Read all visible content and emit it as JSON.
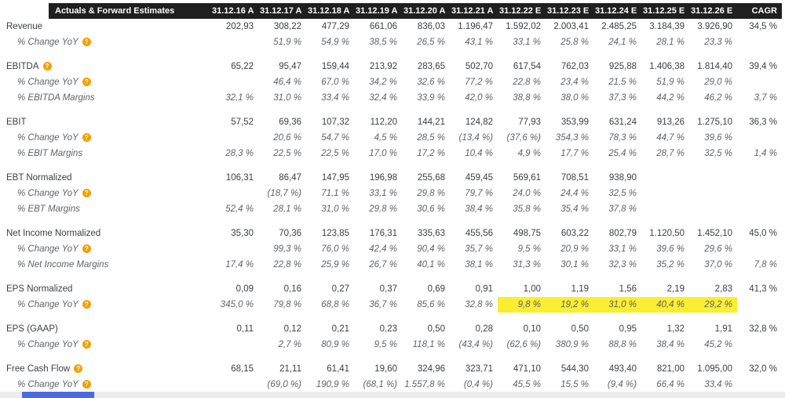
{
  "colors": {
    "header_bg": "#1f1f1f",
    "accent_orange": "#f59f00",
    "negative_red": "#e2403a",
    "highlight_yellow": "#f9ee31",
    "scrollbar_thumb": "#4a6be0"
  },
  "icons": {
    "info": "?"
  },
  "table": {
    "title": "Actuals & Forward Estimates",
    "columns": [
      "31.12.16 A",
      "31.12.17 A",
      "31.12.18 A",
      "31.12.19 A",
      "31.12.20 A",
      "31.12.21 A",
      "31.12.22 E",
      "31.12.23 E",
      "31.12.24 E",
      "31.12.25 E",
      "31.12.26 E",
      "CAGR"
    ],
    "groups": [
      {
        "rows": [
          {
            "label": "Revenue",
            "style": "main",
            "info": false,
            "cells": [
              "202,93",
              "308,22",
              "477,29",
              "661,06",
              "836,03",
              "1.196,47",
              "1.592,02",
              "2.003,41",
              "2.485,25",
              "3.184,39",
              "3.926,90",
              "34,5 %"
            ]
          },
          {
            "label": "% Change YoY",
            "style": "sub",
            "info": true,
            "cells": [
              "",
              "51,9 %",
              "54,9 %",
              "38,5 %",
              "26,5 %",
              "43,1 %",
              "33,1 %",
              "25,8 %",
              "24,1 %",
              "28,1 %",
              "23,3 %",
              ""
            ]
          }
        ]
      },
      {
        "rows": [
          {
            "label": "EBITDA",
            "style": "main",
            "info": true,
            "cells": [
              "65,22",
              "95,47",
              "159,44",
              "213,92",
              "283,65",
              "502,70",
              "617,54",
              "762,03",
              "925,88",
              "1.406,38",
              "1.814,40",
              "39,4 %"
            ]
          },
          {
            "label": "% Change YoY",
            "style": "sub",
            "info": true,
            "cells": [
              "",
              "46,4 %",
              "67,0 %",
              "34,2 %",
              "32,6 %",
              "77,2 %",
              "22,8 %",
              "23,4 %",
              "21,5 %",
              "51,9 %",
              "29,0 %",
              ""
            ]
          },
          {
            "label": "% EBITDA Margins",
            "style": "sub",
            "info": false,
            "cells": [
              "32,1 %",
              "31,0 %",
              "33,4 %",
              "32,4 %",
              "33,9 %",
              "42,0 %",
              "38,8 %",
              "38,0 %",
              "37,3 %",
              "44,2 %",
              "46,2 %",
              "3,7 %"
            ]
          }
        ]
      },
      {
        "rows": [
          {
            "label": "EBIT",
            "style": "main",
            "info": false,
            "cells": [
              "57,52",
              "69,36",
              "107,32",
              "112,20",
              "144,21",
              "124,82",
              "77,93",
              "353,99",
              "631,24",
              "913,26",
              "1.275,10",
              "36,3 %"
            ]
          },
          {
            "label": "% Change YoY",
            "style": "sub",
            "info": true,
            "cells": [
              "",
              "20,6 %",
              "54,7 %",
              "4,5 %",
              "28,5 %",
              "(13,4 %)",
              "(37,6 %)",
              "354,3 %",
              "78,3 %",
              "44,7 %",
              "39,6 %",
              ""
            ]
          },
          {
            "label": "% EBIT Margins",
            "style": "sub",
            "info": false,
            "cells": [
              "28,3 %",
              "22,5 %",
              "22,5 %",
              "17,0 %",
              "17,2 %",
              "10,4 %",
              "4,9 %",
              "17,7 %",
              "25,4 %",
              "28,7 %",
              "32,5 %",
              "1,4 %"
            ]
          }
        ]
      },
      {
        "rows": [
          {
            "label": "EBT Normalized",
            "style": "main",
            "info": false,
            "cells": [
              "106,31",
              "86,47",
              "147,95",
              "196,98",
              "255,68",
              "459,45",
              "569,61",
              "708,51",
              "938,90",
              "",
              "",
              ""
            ]
          },
          {
            "label": "% Change YoY",
            "style": "sub",
            "info": true,
            "cells": [
              "",
              "(18,7 %)",
              "71,1 %",
              "33,1 %",
              "29,8 %",
              "79,7 %",
              "24,0 %",
              "24,4 %",
              "32,5 %",
              "",
              "",
              ""
            ]
          },
          {
            "label": "% EBT Margins",
            "style": "sub",
            "info": false,
            "cells": [
              "52,4 %",
              "28,1 %",
              "31,0 %",
              "29,8 %",
              "30,6 %",
              "38,4 %",
              "35,8 %",
              "35,4 %",
              "37,8 %",
              "",
              "",
              ""
            ]
          }
        ]
      },
      {
        "rows": [
          {
            "label": "Net Income Normalized",
            "style": "main",
            "info": false,
            "cells": [
              "35,30",
              "70,36",
              "123,85",
              "176,31",
              "335,63",
              "455,56",
              "498,75",
              "603,22",
              "802,79",
              "1.120,50",
              "1.452,10",
              "45,0 %"
            ]
          },
          {
            "label": "% Change YoY",
            "style": "sub",
            "info": true,
            "cells": [
              "",
              "99,3 %",
              "76,0 %",
              "42,4 %",
              "90,4 %",
              "35,7 %",
              "9,5 %",
              "20,9 %",
              "33,1 %",
              "39,6 %",
              "29,6 %",
              ""
            ]
          },
          {
            "label": "% Net Income Margins",
            "style": "sub",
            "info": false,
            "cells": [
              "17,4 %",
              "22,8 %",
              "25,9 %",
              "26,7 %",
              "40,1 %",
              "38,1 %",
              "31,3 %",
              "30,1 %",
              "32,3 %",
              "35,2 %",
              "37,0 %",
              "7,8 %"
            ]
          }
        ]
      },
      {
        "rows": [
          {
            "label": "EPS Normalized",
            "style": "main",
            "info": false,
            "cells": [
              "0,09",
              "0,16",
              "0,27",
              "0,37",
              "0,69",
              "0,91",
              "1,00",
              "1,19",
              "1,56",
              "2,19",
              "2,83",
              "41,3 %"
            ]
          },
          {
            "label": "% Change YoY",
            "style": "sub",
            "info": true,
            "highlight": [
              6,
              7,
              8,
              9,
              10
            ],
            "cells": [
              "345,0 %",
              "79,8 %",
              "68,8 %",
              "36,7 %",
              "85,6 %",
              "32,8 %",
              "9,8 %",
              "19,2 %",
              "31,0 %",
              "40,4 %",
              "29,2 %",
              ""
            ]
          }
        ]
      },
      {
        "rows": [
          {
            "label": "EPS (GAAP)",
            "style": "main",
            "info": false,
            "cells": [
              "0,11",
              "0,12",
              "0,21",
              "0,23",
              "0,50",
              "0,28",
              "0,10",
              "0,50",
              "0,95",
              "1,32",
              "1,91",
              "32,8 %"
            ]
          },
          {
            "label": "% Change YoY",
            "style": "sub",
            "info": true,
            "cells": [
              "",
              "2,7 %",
              "80,9 %",
              "9,5 %",
              "118,1 %",
              "(43,4 %)",
              "(62,6 %)",
              "380,9 %",
              "88,8 %",
              "38,4 %",
              "45,2 %",
              ""
            ]
          }
        ]
      },
      {
        "rows": [
          {
            "label": "Free Cash Flow",
            "style": "main",
            "info": true,
            "cells": [
              "68,15",
              "21,11",
              "61,41",
              "19,60",
              "324,96",
              "323,71",
              "471,10",
              "544,30",
              "493,40",
              "821,00",
              "1.095,00",
              "32,0 %"
            ]
          },
          {
            "label": "% Change YoY",
            "style": "sub",
            "info": true,
            "cells": [
              "",
              "(69,0 %)",
              "190,9 %",
              "(68,1 %)",
              "1.557,8 %",
              "(0,4 %)",
              "45,5 %",
              "15,5 %",
              "(9,4 %)",
              "66,4 %",
              "33,4 %",
              ""
            ]
          }
        ]
      }
    ]
  }
}
